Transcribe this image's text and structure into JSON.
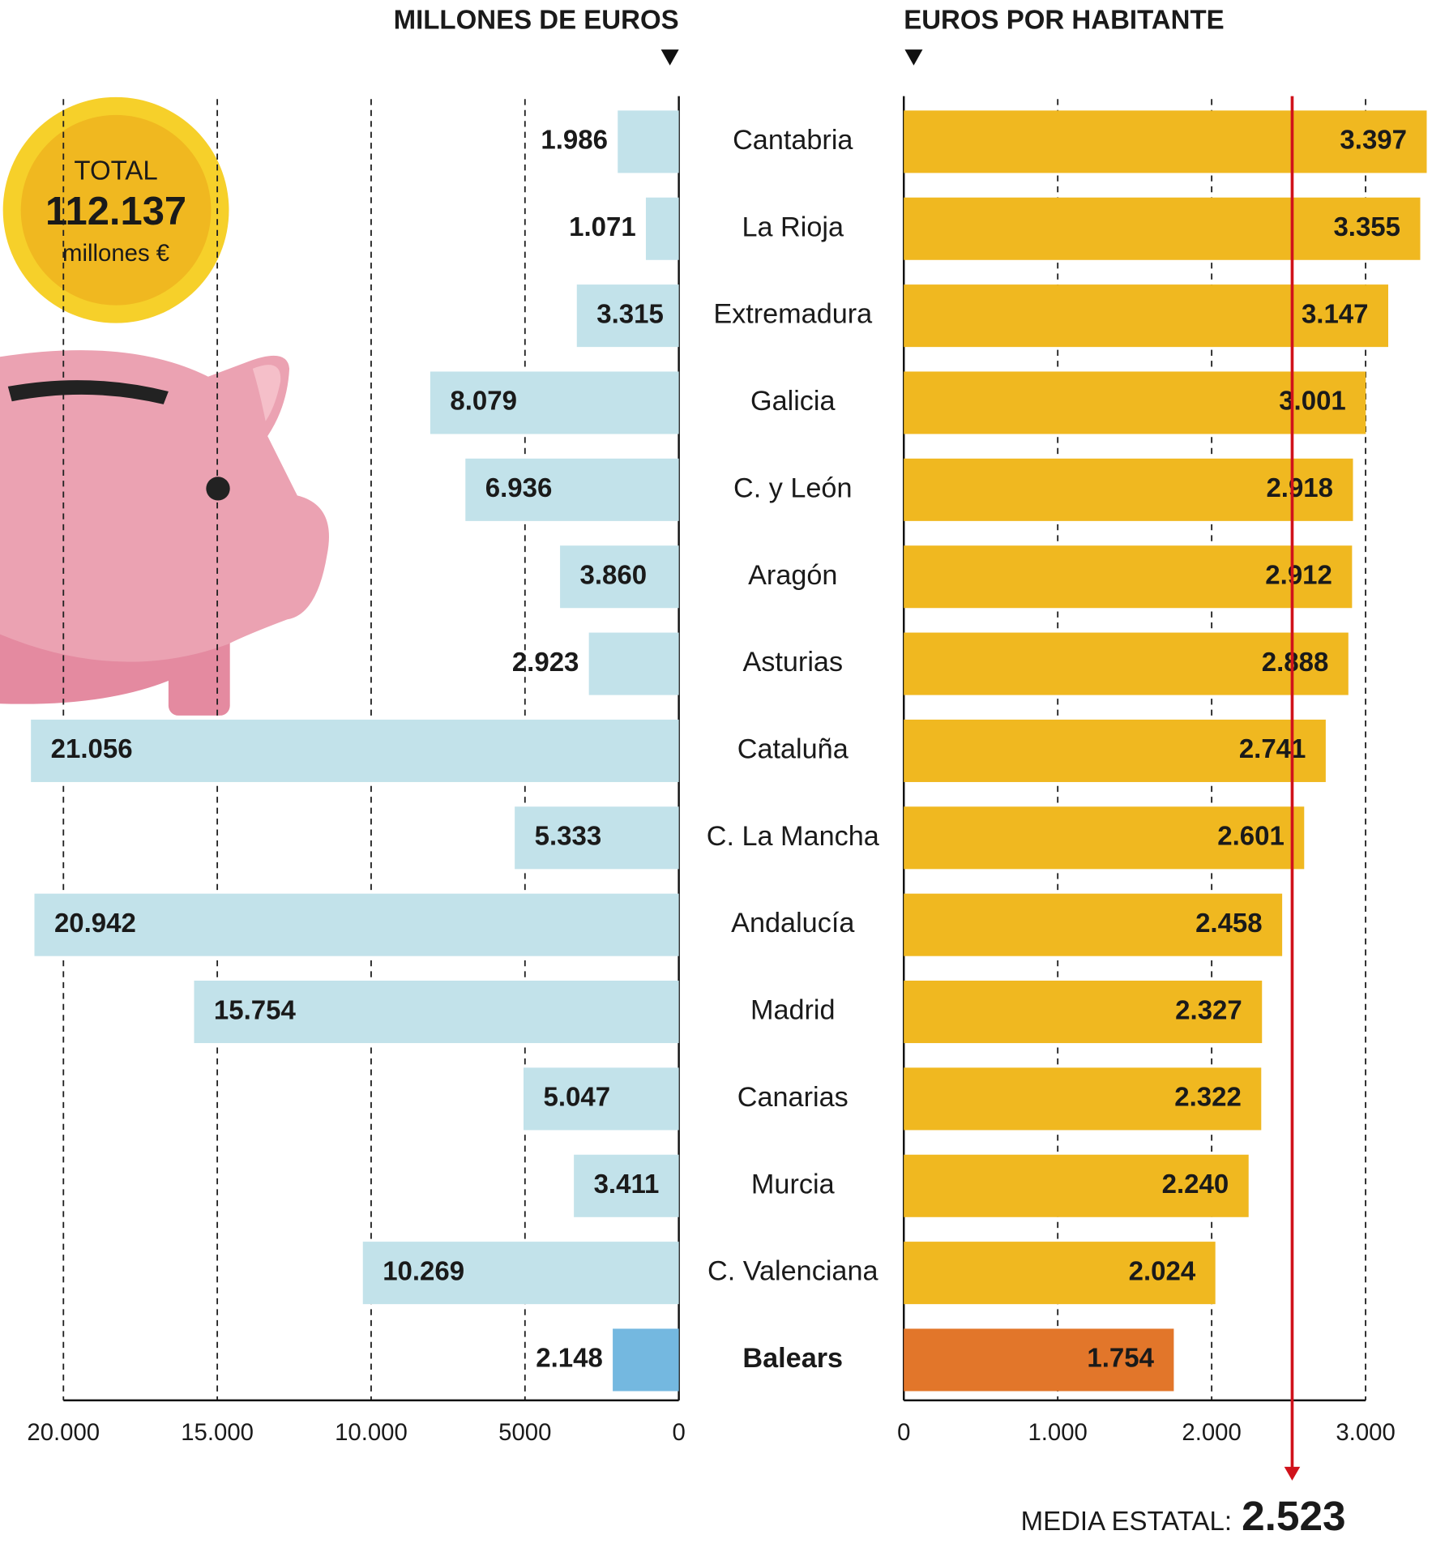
{
  "chart_data": [
    {
      "type": "bar",
      "orientation": "horizontal",
      "title": "MILLONES DE EUROS",
      "categories": [
        "Cantabria",
        "La Rioja",
        "Extremadura",
        "Galicia",
        "C. y León",
        "Aragón",
        "Asturias",
        "Cataluña",
        "C. La Mancha",
        "Andalucía",
        "Madrid",
        "Canarias",
        "Murcia",
        "C. Valenciana",
        "Balears"
      ],
      "values": [
        1986,
        1071,
        3315,
        8079,
        6936,
        3860,
        2923,
        21056,
        5333,
        20942,
        15754,
        5047,
        3411,
        10269,
        2148
      ],
      "value_labels": [
        "1.986",
        "1.071",
        "3.315",
        "8.079",
        "6.936",
        "3.860",
        "2.923",
        "21.056",
        "5.333",
        "20.942",
        "15.754",
        "5.047",
        "3.411",
        "10.269",
        "2.148"
      ],
      "colors": [
        "#c2e2ea",
        "#c2e2ea",
        "#c2e2ea",
        "#c2e2ea",
        "#c2e2ea",
        "#c2e2ea",
        "#c2e2ea",
        "#c2e2ea",
        "#c2e2ea",
        "#c2e2ea",
        "#c2e2ea",
        "#c2e2ea",
        "#c2e2ea",
        "#c2e2ea",
        "#74b8e0"
      ],
      "xlim": [
        20000,
        0
      ],
      "xticks": [
        {
          "value": 20000,
          "label": "20.000"
        },
        {
          "value": 15000,
          "label": "15.000"
        },
        {
          "value": 10000,
          "label": "10.000"
        },
        5000,
        0
      ],
      "grid": true,
      "total": {
        "label": "TOTAL",
        "value": 112137,
        "value_label": "112.137",
        "unit": "millones €"
      }
    },
    {
      "type": "bar",
      "orientation": "horizontal",
      "title": "EUROS POR HABITANTE",
      "values": [
        3397,
        3355,
        3147,
        3001,
        2918,
        2912,
        2888,
        2741,
        2601,
        2458,
        2327,
        2322,
        2240,
        2024,
        1754
      ],
      "value_labels": [
        "3.397",
        "3.355",
        "3.147",
        "3.001",
        "2.918",
        "2.912",
        "2.888",
        "2.741",
        "2.601",
        "2.458",
        "2.327",
        "2.322",
        "2.240",
        "2.024",
        "1.754"
      ],
      "colors": [
        "#f0b820",
        "#f0b820",
        "#f0b820",
        "#f0b820",
        "#f0b820",
        "#f0b820",
        "#f0b820",
        "#f0b820",
        "#f0b820",
        "#f0b820",
        "#f0b820",
        "#f0b820",
        "#f0b820",
        "#f0b820",
        "#e2762a"
      ],
      "xlim": [
        0,
        3000
      ],
      "xticks": [
        0,
        {
          "value": 1000,
          "label": "1.000"
        },
        {
          "value": 2000,
          "label": "2.000"
        },
        {
          "value": 3000,
          "label": "3.000"
        }
      ],
      "grid": true,
      "reference": {
        "label": "MEDIA ESTATAL:",
        "value": 2523,
        "value_label": "2.523",
        "color": "#d0121b"
      }
    }
  ]
}
